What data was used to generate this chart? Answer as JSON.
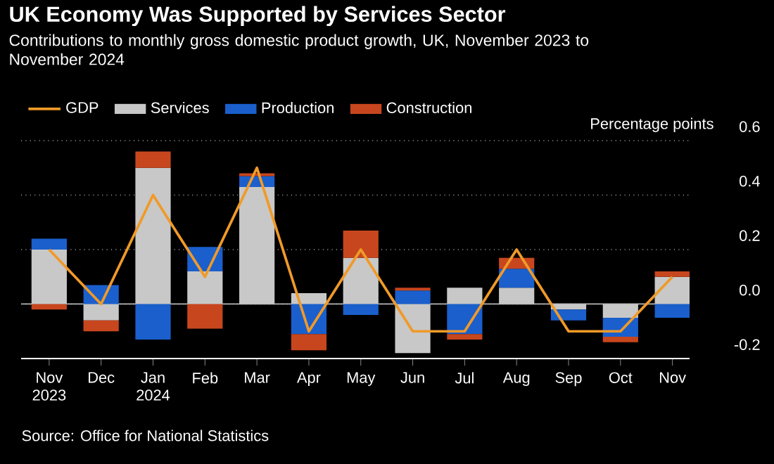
{
  "chart_data": {
    "type": "bar",
    "stacked": true,
    "title": "UK Economy Was Supported by Services Sector",
    "subtitle": "Contributions to monthly gross domestic product growth, UK, November 2023 to November 2024",
    "ylabel": "Percentage points",
    "categories": [
      "Nov 2023",
      "Dec",
      "Jan 2024",
      "Feb",
      "Mar",
      "Apr",
      "May",
      "Jun",
      "Jul",
      "Aug",
      "Sep",
      "Oct",
      "Nov"
    ],
    "series": [
      {
        "name": "GDP",
        "type": "line",
        "color": "#f09a28",
        "values": [
          0.2,
          0.0,
          0.4,
          0.1,
          0.5,
          -0.1,
          0.2,
          -0.1,
          -0.1,
          0.2,
          -0.1,
          -0.1,
          0.1
        ]
      },
      {
        "name": "Services",
        "color": "#c8c8c8",
        "values": [
          0.2,
          -0.06,
          0.5,
          0.12,
          0.43,
          0.04,
          0.17,
          -0.18,
          0.06,
          0.06,
          -0.02,
          -0.05,
          0.1
        ]
      },
      {
        "name": "Production",
        "color": "#1a5fcc",
        "values": [
          0.04,
          0.07,
          -0.13,
          0.09,
          0.04,
          -0.11,
          -0.04,
          0.05,
          -0.11,
          0.07,
          -0.04,
          -0.07,
          -0.05
        ]
      },
      {
        "name": "Construction",
        "color": "#c8461e",
        "values": [
          -0.02,
          -0.04,
          0.06,
          -0.09,
          0.01,
          -0.06,
          0.1,
          0.01,
          -0.02,
          0.04,
          0,
          -0.02,
          0.02
        ]
      }
    ],
    "ylim": [
      -0.2,
      0.6
    ],
    "yticks": [
      -0.2,
      {
        "value": 0,
        "label": "0.0"
      },
      0.2,
      0.4,
      0.6
    ],
    "grid": "y",
    "legend": "top left",
    "annotations": [
      "Source: Office for National Statistics"
    ]
  }
}
